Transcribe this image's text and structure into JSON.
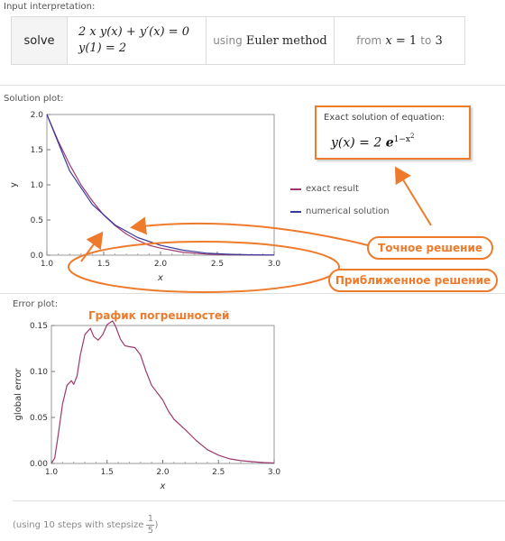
{
  "input": {
    "label": "Input interpretation:",
    "solve": "solve",
    "eq1": "2 x y(x) + y′(x) = 0",
    "eq2": "y(1) = 2",
    "using_word": "using",
    "method": "Euler method",
    "from_word": "from",
    "x_var": "x",
    "eq_sign": "= 1",
    "to_word": "to",
    "to_value": "3"
  },
  "solution": {
    "label": "Solution plot:",
    "exact_box_title": "Exact solution of equation:",
    "exact_formula_lhs": "y(x) = 2 ",
    "exact_formula_e": "e",
    "exact_formula_exp": "1−x",
    "exact_formula_sq": "2",
    "legend": [
      {
        "label": "exact result",
        "color": "#9b3a6e"
      },
      {
        "label": "numerical solution",
        "color": "#3a3a9b"
      }
    ],
    "callout_exact": "Точное решение",
    "callout_numeric": "Приближенное решение"
  },
  "error": {
    "label": "Error plot:",
    "title": "График погрешностей"
  },
  "footnote": {
    "text": "(using 10 steps with stepsize",
    "num": "1",
    "den": "5",
    "close": ")"
  },
  "chart_data": [
    {
      "type": "line",
      "xlabel": "x",
      "ylabel": "y",
      "xlim": [
        1.0,
        3.0
      ],
      "ylim": [
        0.0,
        2.0
      ],
      "x_ticks": [
        "1.0",
        "1.5",
        "2.0",
        "2.5",
        "3.0"
      ],
      "y_ticks": [
        "0.0",
        "0.5",
        "1.0",
        "1.5",
        "2.0"
      ],
      "series": [
        {
          "name": "exact result",
          "color": "#9b3a6e",
          "x": [
            1.0,
            1.1,
            1.2,
            1.3,
            1.4,
            1.5,
            1.6,
            1.7,
            1.8,
            1.9,
            2.0,
            2.2,
            2.4,
            2.6,
            2.8,
            3.0
          ],
          "y": [
            2.0,
            1.62,
            1.29,
            1.0,
            0.77,
            0.57,
            0.42,
            0.3,
            0.21,
            0.14,
            0.1,
            0.04,
            0.015,
            0.005,
            0.002,
            0.0007
          ]
        },
        {
          "name": "numerical solution",
          "color": "#3a3a9b",
          "x": [
            1.0,
            1.2,
            1.4,
            1.6,
            1.8,
            2.0,
            2.2,
            2.4,
            2.6,
            2.8,
            3.0
          ],
          "y": [
            2.0,
            1.2,
            0.72,
            0.43,
            0.25,
            0.14,
            0.07,
            0.03,
            0.013,
            0.005,
            0.002
          ]
        }
      ]
    },
    {
      "type": "line",
      "xlabel": "x",
      "ylabel": "global error",
      "xlim": [
        1.0,
        3.0
      ],
      "ylim": [
        0.0,
        0.15
      ],
      "x_ticks": [
        "1.0",
        "1.5",
        "2.0",
        "2.5",
        "3.0"
      ],
      "y_ticks": [
        "0.00",
        "0.05",
        "0.10",
        "0.15"
      ],
      "series": [
        {
          "name": "",
          "color": "#9b3a6e",
          "x": [
            1.0,
            1.03,
            1.06,
            1.1,
            1.14,
            1.18,
            1.2,
            1.23,
            1.26,
            1.3,
            1.35,
            1.38,
            1.42,
            1.46,
            1.5,
            1.55,
            1.58,
            1.62,
            1.66,
            1.7,
            1.75,
            1.8,
            1.85,
            1.9,
            1.95,
            2.0,
            2.05,
            2.1,
            2.2,
            2.3,
            2.4,
            2.5,
            2.6,
            2.7,
            2.8,
            2.9,
            3.0
          ],
          "y": [
            0.0,
            0.006,
            0.03,
            0.065,
            0.085,
            0.09,
            0.086,
            0.095,
            0.118,
            0.14,
            0.147,
            0.138,
            0.134,
            0.14,
            0.151,
            0.155,
            0.148,
            0.135,
            0.128,
            0.127,
            0.126,
            0.118,
            0.1,
            0.085,
            0.077,
            0.069,
            0.057,
            0.048,
            0.037,
            0.025,
            0.015,
            0.009,
            0.005,
            0.003,
            0.002,
            0.001,
            0.0005
          ]
        }
      ]
    }
  ]
}
